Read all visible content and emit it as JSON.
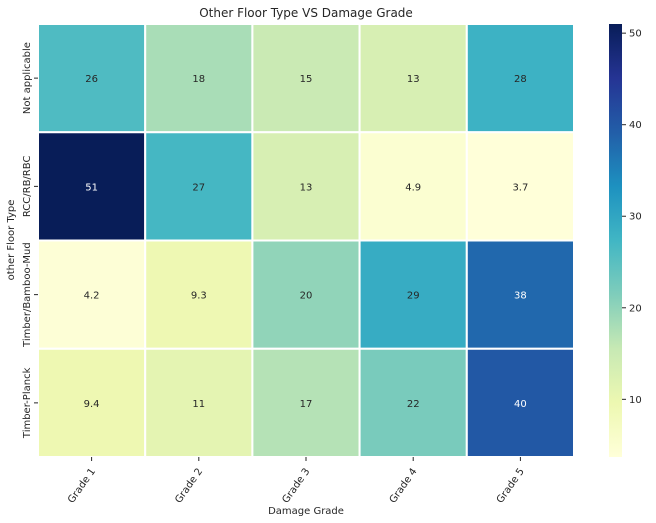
{
  "chart_data": {
    "type": "heatmap",
    "title": "Other Floor Type VS Damage Grade",
    "xlabel": "Damage Grade",
    "ylabel": "other Floor Type",
    "x_categories": [
      "Grade 1",
      "Grade 2",
      "Grade 3",
      "Grade 4",
      "Grade 5"
    ],
    "y_categories": [
      "Not applicable",
      "RCC/RB/RBC",
      "Timber/Bamboo-Mud",
      "Timber-Planck"
    ],
    "values": [
      [
        26,
        18,
        15,
        13,
        28
      ],
      [
        51,
        27,
        13,
        4.9,
        3.7
      ],
      [
        4.2,
        9.3,
        20,
        29,
        38
      ],
      [
        9.4,
        11,
        17,
        22,
        40
      ]
    ],
    "annotations": [
      [
        "26",
        "18",
        "15",
        "13",
        "28"
      ],
      [
        "51",
        "27",
        "13",
        "4.9",
        "3.7"
      ],
      [
        "4.2",
        "9.3",
        "20",
        "29",
        "38"
      ],
      [
        "9.4",
        "11",
        "17",
        "22",
        "40"
      ]
    ],
    "colormap": "YlGnBu",
    "vmin": 3.7,
    "vmax": 51,
    "colorbar_ticks": [
      10,
      20,
      30,
      40,
      50
    ],
    "cell_border_color": "#ffffff"
  }
}
